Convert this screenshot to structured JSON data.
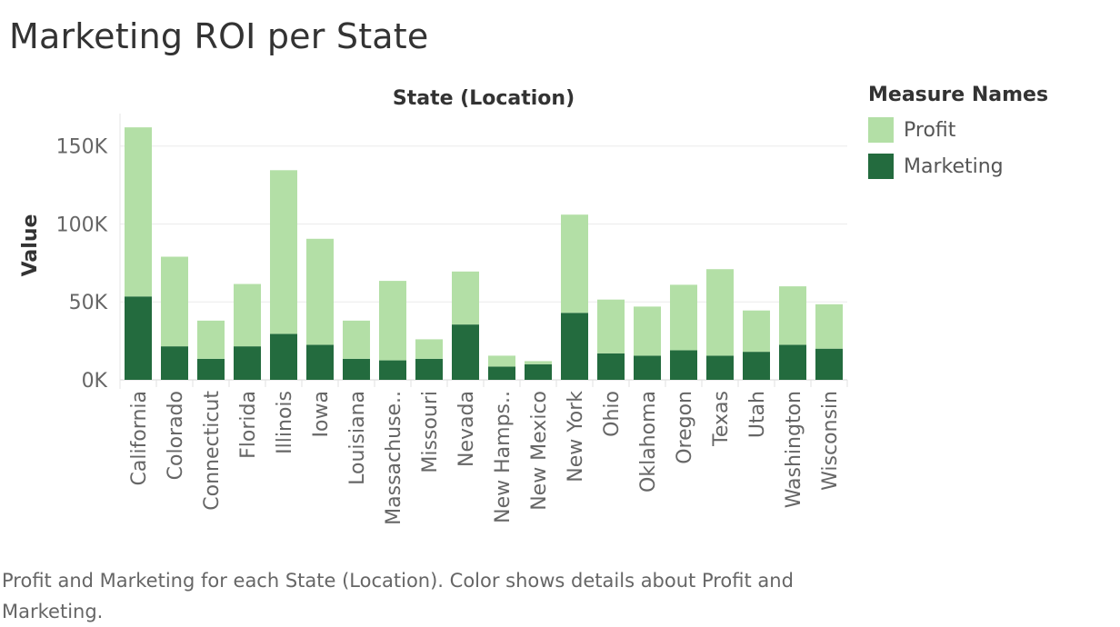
{
  "page": {
    "title": "Marketing ROI per State",
    "caption": "Profit and Marketing for each State (Location).  Color shows details about Profit and Marketing."
  },
  "legend": {
    "title": "Measure Names",
    "items": [
      {
        "label": "Profit",
        "color": "#b3dfa6"
      },
      {
        "label": "Marketing",
        "color": "#236b3e"
      }
    ]
  },
  "chart_data": {
    "type": "bar",
    "stacked": true,
    "title": "State (Location)",
    "xlabel": "",
    "ylabel": "Value",
    "ylim": [
      0,
      165000
    ],
    "yticks": [
      0,
      50000,
      100000,
      150000
    ],
    "ytick_labels": [
      "0K",
      "50K",
      "100K",
      "150K"
    ],
    "grid": true,
    "legend_position": "top-right",
    "categories": [
      "California",
      "Colorado",
      "Connecticut",
      "Florida",
      "Illinois",
      "Iowa",
      "Louisiana",
      "Massachuse..",
      "Missouri",
      "Nevada",
      "New Hamps..",
      "New Mexico",
      "New York",
      "Ohio",
      "Oklahoma",
      "Oregon",
      "Texas",
      "Utah",
      "Washington",
      "Wisconsin"
    ],
    "series": [
      {
        "name": "Marketing",
        "color": "#236b3e",
        "values": [
          53500,
          21500,
          13500,
          21500,
          29500,
          22500,
          13500,
          12500,
          13500,
          35500,
          8500,
          10000,
          43000,
          17000,
          15500,
          19000,
          15500,
          18000,
          22500,
          20000
        ]
      },
      {
        "name": "Profit",
        "color": "#b3dfa6",
        "values": [
          108500,
          57500,
          24500,
          40000,
          105000,
          68000,
          24500,
          51000,
          12500,
          34000,
          7000,
          2000,
          63000,
          34500,
          31500,
          42000,
          55500,
          26500,
          37500,
          28500
        ]
      }
    ]
  }
}
